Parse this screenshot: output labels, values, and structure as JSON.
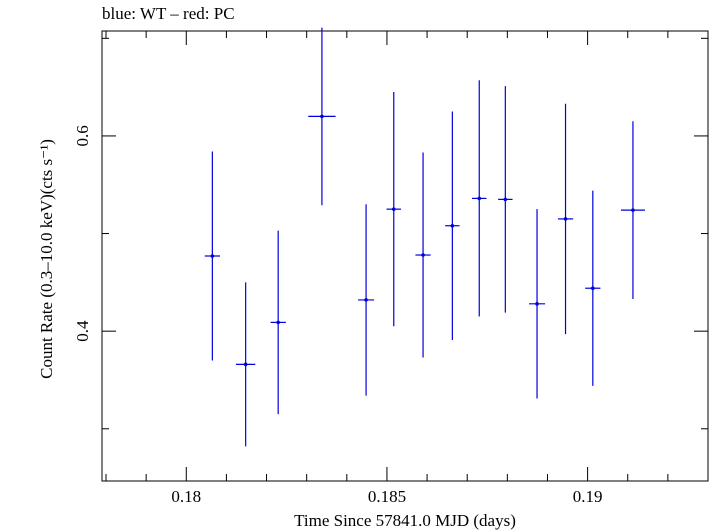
{
  "chart_data": {
    "type": "scatter",
    "title": "blue: WT – red: PC",
    "xlabel": "Time Since 57841.0 MJD (days)",
    "ylabel": "Count Rate (0.3–10.0 keV)(cts s⁻¹)",
    "xlim": [
      0.1779,
      0.193
    ],
    "ylim": [
      0.2465,
      0.7075
    ],
    "x_ticks": [
      {
        "value": 0.18,
        "label": "0.18"
      },
      {
        "value": 0.185,
        "label": "0.185"
      },
      {
        "value": 0.19,
        "label": "0.19"
      }
    ],
    "y_ticks": [
      {
        "value": 0.4,
        "label": "0.4"
      },
      {
        "value": 0.6,
        "label": "0.6"
      }
    ],
    "grid": false,
    "series": [
      {
        "color": "#0000dd",
        "points": [
          {
            "x": 0.18065,
            "xerr": 0.00019,
            "y": 0.477,
            "yerr": 0.107
          },
          {
            "x": 0.18148,
            "xerr": 0.00024,
            "y": 0.366,
            "yerr": 0.084
          },
          {
            "x": 0.18229,
            "xerr": 0.00019,
            "y": 0.409,
            "yerr": 0.094
          },
          {
            "x": 0.18338,
            "xerr": 0.00034,
            "y": 0.62,
            "yerr": 0.091
          },
          {
            "x": 0.18448,
            "xerr": 0.0002,
            "y": 0.432,
            "yerr": 0.098
          },
          {
            "x": 0.18517,
            "xerr": 0.00018,
            "y": 0.525,
            "yerr": 0.12
          },
          {
            "x": 0.1859,
            "xerr": 0.00019,
            "y": 0.478,
            "yerr": 0.105
          },
          {
            "x": 0.18663,
            "xerr": 0.00018,
            "y": 0.508,
            "yerr": 0.117
          },
          {
            "x": 0.1873,
            "xerr": 0.00018,
            "y": 0.536,
            "yerr": 0.121
          },
          {
            "x": 0.18795,
            "xerr": 0.00018,
            "y": 0.535,
            "yerr": 0.116
          },
          {
            "x": 0.18874,
            "xerr": 0.0002,
            "y": 0.428,
            "yerr": 0.097
          },
          {
            "x": 0.18945,
            "xerr": 0.00019,
            "y": 0.515,
            "yerr": 0.118
          },
          {
            "x": 0.19013,
            "xerr": 0.00019,
            "y": 0.444,
            "yerr": 0.1
          },
          {
            "x": 0.19113,
            "xerr": 0.0003,
            "y": 0.524,
            "yerr": 0.091
          }
        ]
      }
    ]
  }
}
